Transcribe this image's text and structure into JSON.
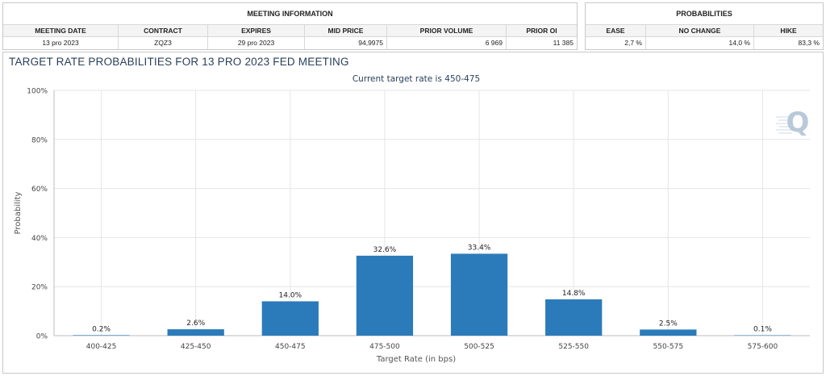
{
  "meeting_info": {
    "title": "MEETING INFORMATION",
    "headers": [
      "MEETING DATE",
      "CONTRACT",
      "EXPIRES",
      "MID PRICE",
      "PRIOR VOLUME",
      "PRIOR OI"
    ],
    "row": [
      "13 pro 2023",
      "ZQZ3",
      "29 pro 2023",
      "94,9975",
      "6 969",
      "11 385"
    ]
  },
  "probabilities": {
    "title": "PROBABILITIES",
    "headers": [
      "EASE",
      "NO CHANGE",
      "HIKE"
    ],
    "row": [
      "2,7 %",
      "14,0 %",
      "83,3 %"
    ]
  },
  "chart_data": {
    "type": "bar",
    "title": "TARGET RATE PROBABILITIES FOR 13 PRO 2023 FED MEETING",
    "subtitle": "Current target rate is 450-475",
    "xlabel": "Target Rate (in bps)",
    "ylabel": "Probability",
    "categories": [
      "400-425",
      "425-450",
      "450-475",
      "475-500",
      "500-525",
      "525-550",
      "550-575",
      "575-600"
    ],
    "values": [
      0.2,
      2.6,
      14.0,
      32.6,
      33.4,
      14.8,
      2.5,
      0.1
    ],
    "value_labels": [
      "0.2%",
      "2.6%",
      "14.0%",
      "32.6%",
      "33.4%",
      "14.8%",
      "2.5%",
      "0.1%"
    ],
    "ylim": [
      0,
      100
    ],
    "yticks": [
      0,
      20,
      40,
      60,
      80,
      100
    ],
    "ytick_labels": [
      "0%",
      "20%",
      "40%",
      "60%",
      "80%",
      "100%"
    ],
    "grid": true,
    "legend": "none",
    "bar_color": "#2b7bba",
    "watermark_color": "#b9c9d9"
  }
}
